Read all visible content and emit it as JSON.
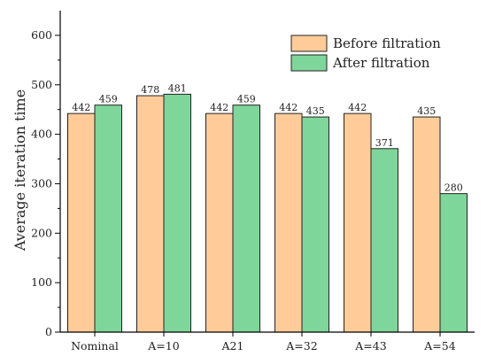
{
  "chart_data": {
    "type": "bar",
    "categories": [
      "Nominal",
      "A=10",
      "A21",
      "A=32",
      "A=43",
      "A=54"
    ],
    "series": [
      {
        "name": "Before filtration",
        "values": [
          442,
          478,
          442,
          442,
          442,
          435
        ],
        "color": "#FFCC99",
        "stroke": "#222222"
      },
      {
        "name": "After filtration",
        "values": [
          459,
          481,
          459,
          435,
          371,
          280
        ],
        "color": "#7FD69A",
        "stroke": "#222222"
      }
    ],
    "ylabel": "Average iteration time",
    "xlabel": "",
    "ylim": [
      0,
      650
    ],
    "yticks": [
      0,
      100,
      200,
      300,
      400,
      500,
      600
    ],
    "grid": false,
    "legend_position": "top-right",
    "data_labels": true
  }
}
